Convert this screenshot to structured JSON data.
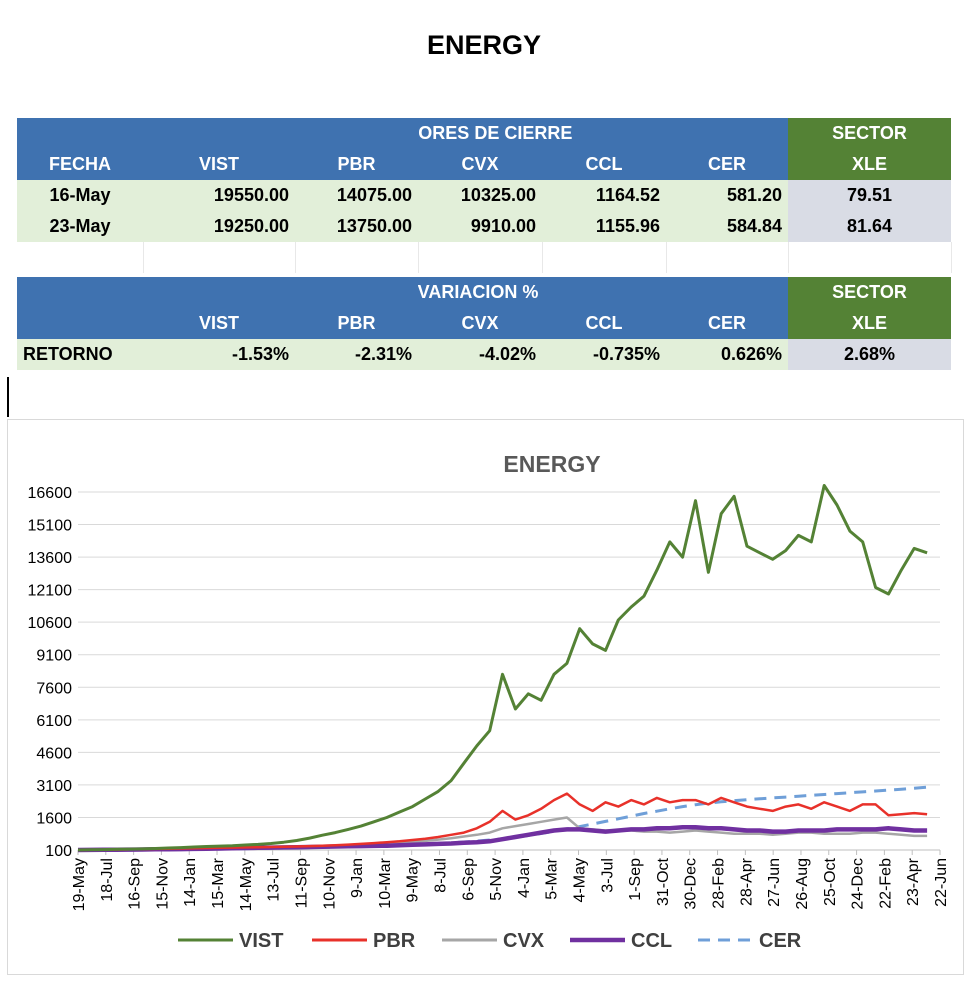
{
  "page_title": "ENERGY",
  "table1": {
    "group_header": "VALORES DE CIERRE",
    "sector_label": "SECTOR",
    "sector_sub": "XLE",
    "columns": [
      "FECHA",
      "VIST",
      "PBR",
      "CVX",
      "CCL",
      "CER"
    ],
    "rows": [
      {
        "fecha": "16-May",
        "vist": "19550.00",
        "pbr": "14075.00",
        "cvx": "10325.00",
        "ccl": "1164.52",
        "cer": "581.20",
        "xle": "79.51"
      },
      {
        "fecha": "23-May",
        "vist": "19250.00",
        "pbr": "13750.00",
        "cvx": "9910.00",
        "ccl": "1155.96",
        "cer": "584.84",
        "xle": "81.64"
      }
    ]
  },
  "table2": {
    "group_header": "VARIACION %",
    "sector_label": "SECTOR",
    "sector_sub": "XLE",
    "columns": [
      "",
      "VIST",
      "PBR",
      "CVX",
      "CCL",
      "CER"
    ],
    "row": {
      "label": "RETORNO",
      "vist": "-1.53%",
      "pbr": "-2.31%",
      "cvx": "-4.02%",
      "ccl": "-0.735%",
      "cer": "0.626%",
      "xle": "2.68%"
    }
  },
  "chart_data": {
    "type": "line",
    "title": "ENERGY",
    "y_ticks": [
      100,
      1600,
      3100,
      4600,
      6100,
      7600,
      9100,
      10600,
      12100,
      13600,
      15100,
      16600
    ],
    "ylim": [
      100,
      16600
    ],
    "x_ticks": [
      "19-May",
      "18-Jul",
      "16-Sep",
      "15-Nov",
      "14-Jan",
      "15-Mar",
      "14-May",
      "13-Jul",
      "11-Sep",
      "10-Nov",
      "9-Jan",
      "10-Mar",
      "9-May",
      "8-Jul",
      "6-Sep",
      "5-Nov",
      "4-Jan",
      "5-Mar",
      "4-May",
      "3-Jul",
      "1-Sep",
      "31-Oct",
      "30-Dec",
      "28-Feb",
      "28-Apr",
      "27-Jun",
      "26-Aug",
      "25-Oct",
      "24-Dec",
      "22-Feb",
      "23-Apr",
      "22-Jun"
    ],
    "grid": "horizontal",
    "legend": "bottom",
    "series": [
      {
        "name": "VIST",
        "color": "#548235",
        "width": 3,
        "dash": "",
        "values": [
          100,
          110,
          120,
          130,
          140,
          150,
          170,
          190,
          210,
          240,
          260,
          280,
          300,
          330,
          360,
          400,
          460,
          540,
          650,
          780,
          900,
          1050,
          1200,
          1400,
          1600,
          1850,
          2100,
          2450,
          2800,
          3300,
          4100,
          4900,
          5600,
          8200,
          6600,
          7300,
          7000,
          8200,
          8700,
          10300,
          9600,
          9300,
          10700,
          11300,
          11800,
          13000,
          14300,
          13600,
          16200,
          12900,
          15600,
          16400,
          14100,
          13800,
          13500,
          13900,
          14600,
          14300,
          16900,
          16000,
          14800,
          14300,
          12200,
          11900,
          13000,
          14000,
          13800
        ]
      },
      {
        "name": "PBR",
        "color": "#e8312a",
        "width": 2.5,
        "dash": "",
        "values": [
          100,
          110,
          115,
          125,
          130,
          140,
          150,
          160,
          170,
          180,
          190,
          200,
          210,
          220,
          230,
          240,
          250,
          260,
          280,
          300,
          320,
          350,
          380,
          420,
          460,
          500,
          560,
          620,
          700,
          800,
          900,
          1100,
          1400,
          1900,
          1500,
          1700,
          2000,
          2400,
          2700,
          2200,
          1900,
          2300,
          2100,
          2400,
          2200,
          2500,
          2300,
          2400,
          2400,
          2200,
          2500,
          2300,
          2100,
          2000,
          1900,
          2100,
          2200,
          2000,
          2300,
          2100,
          1900,
          2200,
          2200,
          1700,
          1750,
          1800,
          1750
        ]
      },
      {
        "name": "CVX",
        "color": "#a6a6a6",
        "width": 2.5,
        "dash": "",
        "values": [
          100,
          105,
          110,
          115,
          120,
          125,
          130,
          140,
          150,
          160,
          170,
          180,
          190,
          200,
          210,
          220,
          230,
          240,
          250,
          260,
          280,
          300,
          330,
          360,
          400,
          440,
          480,
          520,
          580,
          640,
          720,
          800,
          900,
          1100,
          1200,
          1300,
          1400,
          1500,
          1600,
          1100,
          1050,
          1000,
          1000,
          1000,
          950,
          950,
          900,
          950,
          1000,
          950,
          900,
          850,
          850,
          850,
          800,
          850,
          900,
          900,
          850,
          850,
          850,
          900,
          900,
          850,
          800,
          750,
          750
        ]
      },
      {
        "name": "CCL",
        "color": "#7030a0",
        "width": 4.5,
        "dash": "",
        "values": [
          100,
          105,
          110,
          115,
          120,
          125,
          130,
          135,
          140,
          150,
          160,
          170,
          180,
          190,
          200,
          210,
          220,
          230,
          240,
          250,
          260,
          270,
          280,
          290,
          300,
          320,
          340,
          360,
          380,
          400,
          430,
          460,
          500,
          600,
          700,
          800,
          900,
          1000,
          1050,
          1050,
          1000,
          950,
          1000,
          1050,
          1050,
          1100,
          1100,
          1150,
          1150,
          1100,
          1100,
          1050,
          1000,
          1000,
          950,
          950,
          1000,
          1000,
          1000,
          1050,
          1050,
          1050,
          1050,
          1100,
          1050,
          1000,
          1000
        ]
      },
      {
        "name": "CER",
        "color": "#6f9fd8",
        "width": 3,
        "dash": "12,8",
        "values": [
          100,
          100,
          105,
          105,
          110,
          110,
          115,
          120,
          125,
          130,
          135,
          140,
          150,
          160,
          170,
          180,
          190,
          200,
          210,
          220,
          235,
          250,
          265,
          280,
          300,
          320,
          345,
          370,
          400,
          430,
          470,
          510,
          560,
          620,
          690,
          770,
          860,
          960,
          1070,
          1180,
          1300,
          1420,
          1540,
          1660,
          1780,
          1890,
          2000,
          2100,
          2190,
          2260,
          2320,
          2370,
          2420,
          2460,
          2500,
          2540,
          2580,
          2620,
          2660,
          2700,
          2740,
          2780,
          2820,
          2860,
          2900,
          2950,
          3000
        ]
      }
    ]
  }
}
